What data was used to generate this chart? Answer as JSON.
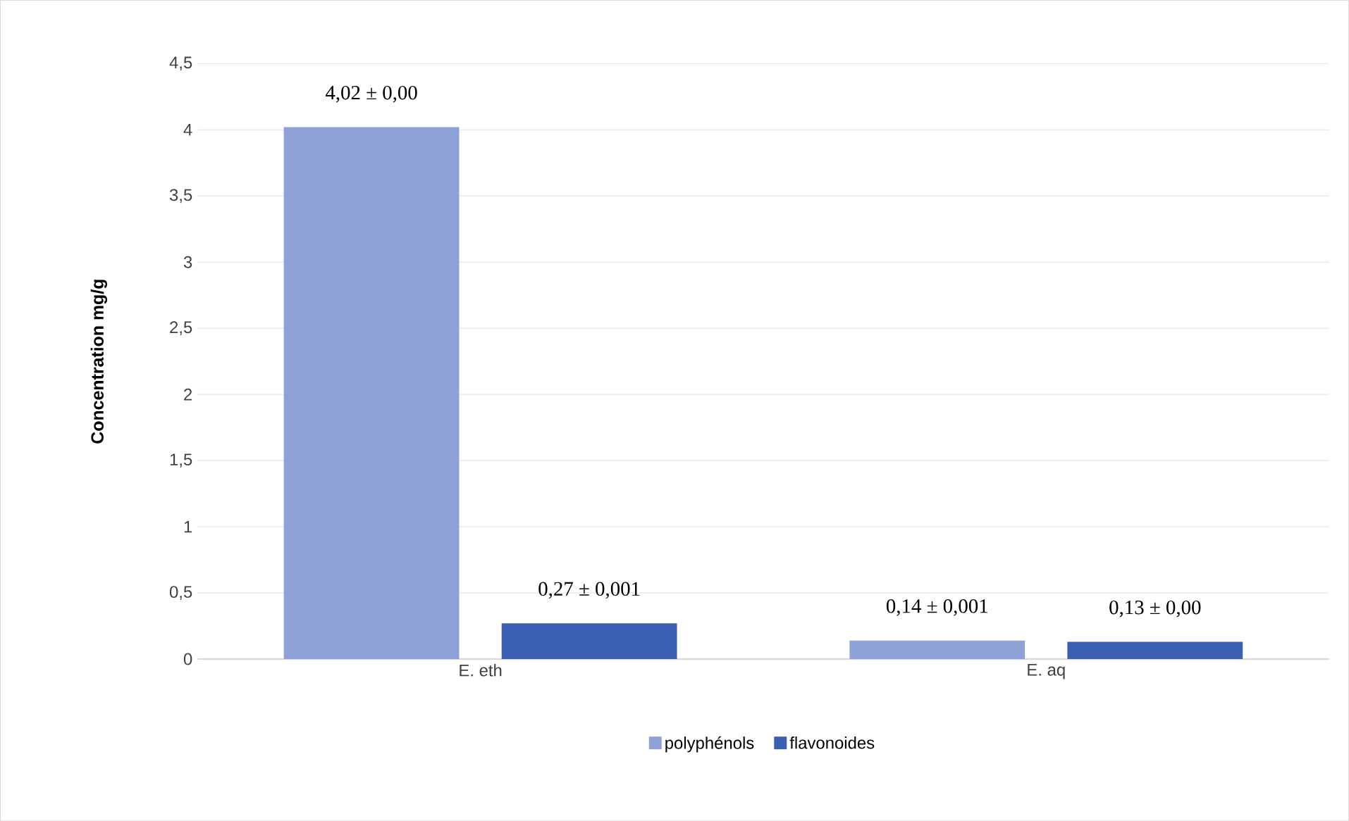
{
  "chart_data": {
    "type": "bar",
    "ylabel": "Concentration mg/g",
    "categories": [
      "E. eth",
      "E. aq"
    ],
    "series": [
      {
        "name": "polyphénols",
        "color": "#8fa2d8",
        "values": [
          4.02,
          0.14
        ],
        "value_labels": [
          "4,02 ± 0,00",
          "0,14 ± 0,001"
        ]
      },
      {
        "name": "flavonoides",
        "color": "#3b5fb3",
        "values": [
          0.27,
          0.13
        ],
        "value_labels": [
          "0,27 ± 0,001",
          "0,13 ± 0,00"
        ]
      }
    ],
    "ylim": [
      0,
      4.5
    ],
    "yticks": [
      0,
      {
        "value": 0.5,
        "label": "0,5"
      },
      1,
      {
        "value": 1.5,
        "label": "1,5"
      },
      2,
      {
        "value": 2.5,
        "label": "2,5"
      },
      3,
      {
        "value": 3.5,
        "label": "3,5"
      },
      4,
      {
        "value": 4.5,
        "label": "4,5"
      }
    ],
    "grid": "y",
    "legend": "bottom"
  }
}
